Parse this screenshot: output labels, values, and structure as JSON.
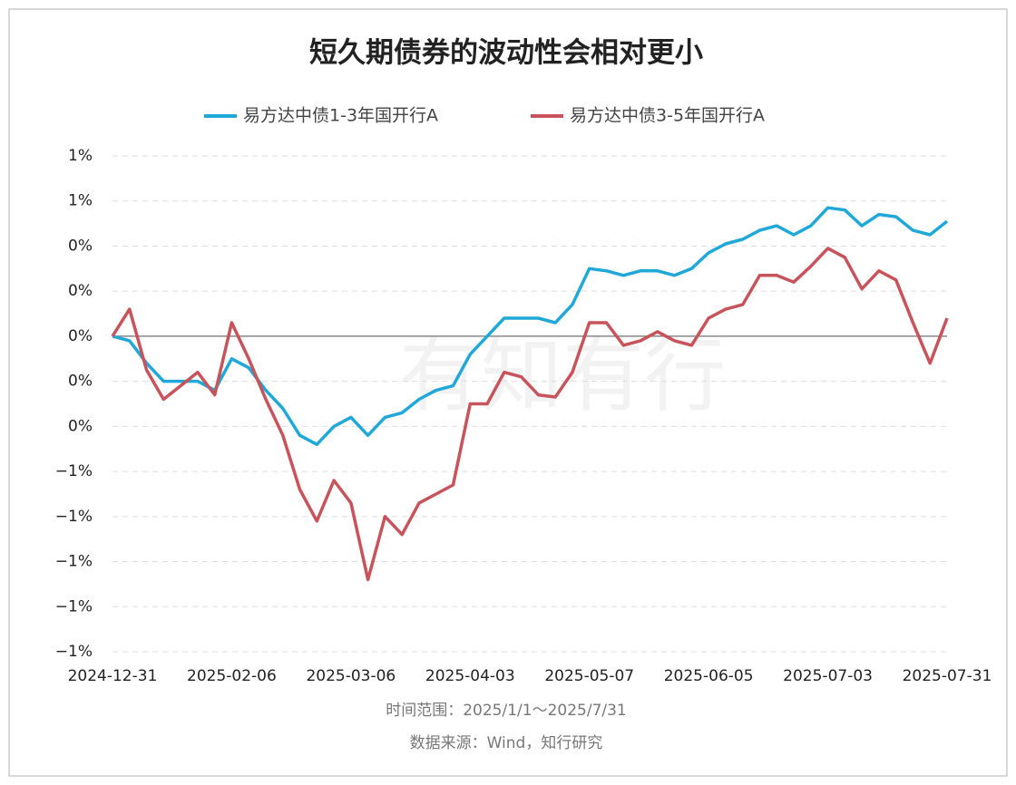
{
  "chart_data": {
    "type": "line",
    "title": "短久期债券的波动性会相对更小",
    "watermark": "有知有行",
    "notes": [
      "时间范围：2025/1/1～2025/7/31",
      "数据来源：Wind，知行研究"
    ],
    "x": [
      "2024-12-31",
      "2025-01-06",
      "2025-01-09",
      "2025-01-14",
      "2025-01-17",
      "2025-01-22",
      "2025-01-27",
      "2025-02-06",
      "2025-02-11",
      "2025-02-14",
      "2025-02-19",
      "2025-02-24",
      "2025-02-27",
      "2025-03-03",
      "2025-03-06",
      "2025-03-11",
      "2025-03-14",
      "2025-03-19",
      "2025-03-24",
      "2025-03-27",
      "2025-04-01",
      "2025-04-03",
      "2025-04-09",
      "2025-04-14",
      "2025-04-17",
      "2025-04-22",
      "2025-04-25",
      "2025-04-30",
      "2025-05-07",
      "2025-05-12",
      "2025-05-15",
      "2025-05-20",
      "2025-05-23",
      "2025-05-28",
      "2025-06-03",
      "2025-06-05",
      "2025-06-10",
      "2025-06-13",
      "2025-06-18",
      "2025-06-23",
      "2025-06-26",
      "2025-06-30",
      "2025-07-03",
      "2025-07-08",
      "2025-07-11",
      "2025-07-16",
      "2025-07-21",
      "2025-07-24",
      "2025-07-28",
      "2025-07-31"
    ],
    "series": [
      {
        "name": "易方达中债1-3年国开行A",
        "color": "#1fa8d8",
        "values": [
          0,
          -0.02,
          -0.12,
          -0.2,
          -0.2,
          -0.2,
          -0.24,
          -0.1,
          -0.14,
          -0.24,
          -0.32,
          -0.44,
          -0.48,
          -0.4,
          -0.36,
          -0.44,
          -0.36,
          -0.34,
          -0.28,
          -0.24,
          -0.22,
          -0.08,
          0,
          0.08,
          0.08,
          0.08,
          0.06,
          0.14,
          0.3,
          0.29,
          0.27,
          0.29,
          0.29,
          0.27,
          0.3,
          0.37,
          0.41,
          0.43,
          0.47,
          0.49,
          0.45,
          0.49,
          0.57,
          0.56,
          0.49,
          0.54,
          0.53,
          0.47,
          0.45,
          0.51
        ]
      },
      {
        "name": "易方达中债3-5年国开行A",
        "color": "#c8535a",
        "values": [
          0,
          0.12,
          -0.15,
          -0.28,
          -0.22,
          -0.16,
          -0.26,
          0.06,
          -0.1,
          -0.28,
          -0.44,
          -0.68,
          -0.82,
          -0.64,
          -0.74,
          -1.08,
          -0.8,
          -0.88,
          -0.74,
          -0.7,
          -0.66,
          -0.3,
          -0.3,
          -0.16,
          -0.18,
          -0.26,
          -0.27,
          -0.16,
          0.06,
          0.06,
          -0.04,
          -0.02,
          0.02,
          -0.02,
          -0.04,
          0.08,
          0.12,
          0.14,
          0.27,
          0.27,
          0.24,
          0.31,
          0.39,
          0.35,
          0.21,
          0.29,
          0.25,
          0.06,
          -0.12,
          0.08
        ]
      }
    ],
    "xticks": [
      "2024-12-31",
      "2025-02-06",
      "2025-03-06",
      "2025-04-03",
      "2025-05-07",
      "2025-06-05",
      "2025-07-03",
      "2025-07-31"
    ],
    "ylim": [
      -1.4,
      0.8
    ],
    "yticks": [
      {
        "value": 0.8,
        "label": "1%"
      },
      {
        "value": 0.6,
        "label": "1%"
      },
      {
        "value": 0.4,
        "label": "0%"
      },
      {
        "value": 0.2,
        "label": "0%"
      },
      {
        "value": 0,
        "label": "0%"
      },
      {
        "value": -0.2,
        "label": "0%"
      },
      {
        "value": -0.4,
        "label": "0%"
      },
      {
        "value": -0.6,
        "label": "−1%"
      },
      {
        "value": -0.8,
        "label": "−1%"
      },
      {
        "value": -1.0,
        "label": "−1%"
      },
      {
        "value": -1.2,
        "label": "−1%"
      },
      {
        "value": -1.4,
        "label": "−1%"
      }
    ],
    "grid": true
  }
}
